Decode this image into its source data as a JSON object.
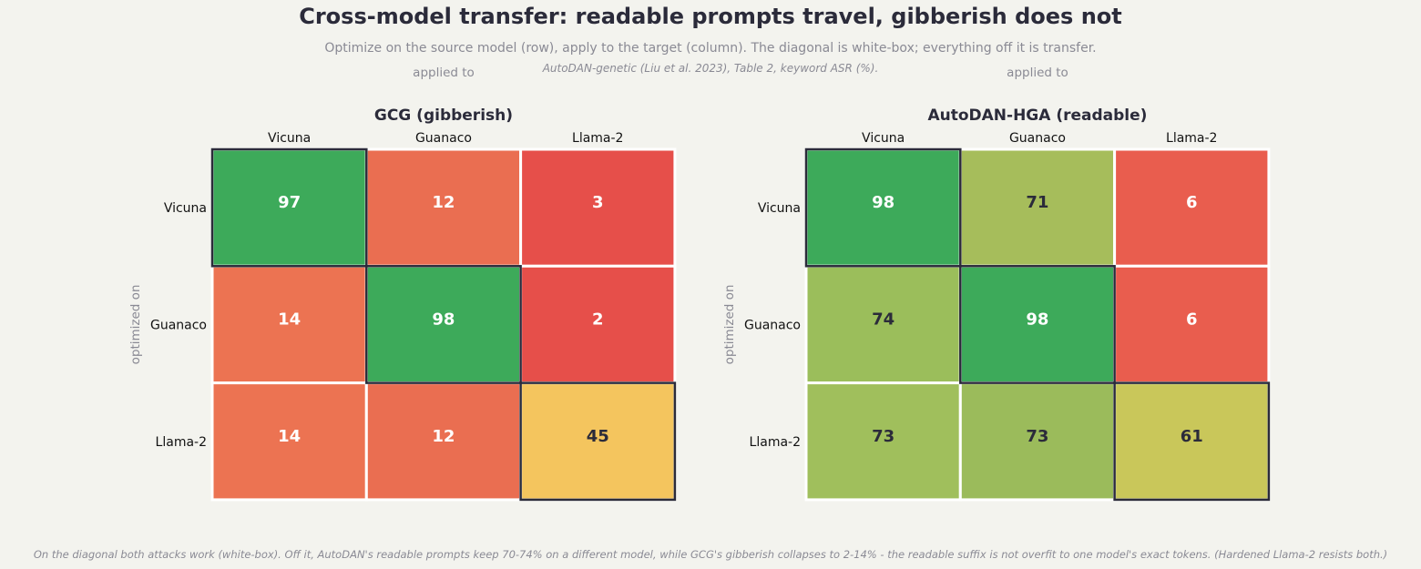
{
  "title": "Cross-model transfer: readable prompts travel, gibberish does not",
  "subtitle": "Optimize on the source model (row), apply to the target (column). The diagonal is white-box; everything off it is transfer.",
  "source_note": "AutoDAN-genetic (Liu et al. 2023), Table 2, keyword ASR (%).",
  "footer": "On the diagonal both attacks work (white-box). Off it, AutoDAN's readable prompts keep 70-74% on a different model, while GCG's gibberish collapses to 2-14% - the readable suffix is not overfit to one model's exact tokens. (Hardened Llama-2 resists both.)",
  "chart_data": [
    {
      "type": "heatmap",
      "title": "GCG (gibberish)",
      "xlabel": "applied to",
      "ylabel": "optimized on",
      "columns": [
        "Vicuna",
        "Guanaco",
        "Llama-2"
      ],
      "rows": [
        "Vicuna",
        "Guanaco",
        "Llama-2"
      ],
      "values": [
        [
          97,
          12,
          3
        ],
        [
          14,
          98,
          2
        ],
        [
          14,
          12,
          45
        ]
      ],
      "colors": [
        [
          "#3daa5a",
          "#ea6e51",
          "#e64f4a"
        ],
        [
          "#ec7352",
          "#3daa5a",
          "#e64f4a"
        ],
        [
          "#ec7352",
          "#ea6e51",
          "#f4c55e"
        ]
      ],
      "text_colors": [
        [
          "#ffffff",
          "#ffffff",
          "#ffffff"
        ],
        [
          "#ffffff",
          "#ffffff",
          "#ffffff"
        ],
        [
          "#ffffff",
          "#ffffff",
          "#2b2b3a"
        ]
      ],
      "diagonal_highlight": true
    },
    {
      "type": "heatmap",
      "title": "AutoDAN-HGA (readable)",
      "xlabel": "applied to",
      "ylabel": "optimized on",
      "columns": [
        "Vicuna",
        "Guanaco",
        "Llama-2"
      ],
      "rows": [
        "Vicuna",
        "Guanaco",
        "Llama-2"
      ],
      "values": [
        [
          98,
          71,
          6
        ],
        [
          74,
          98,
          6
        ],
        [
          73,
          73,
          61
        ]
      ],
      "colors": [
        [
          "#3daa5a",
          "#a6bd5b",
          "#e95d4e"
        ],
        [
          "#9bbe5b",
          "#3daa5a",
          "#e95d4e"
        ],
        [
          "#a0bf5c",
          "#9bbb5b",
          "#c9c75a"
        ]
      ],
      "text_colors": [
        [
          "#ffffff",
          "#2b2b3a",
          "#ffffff"
        ],
        [
          "#2b2b3a",
          "#ffffff",
          "#ffffff"
        ],
        [
          "#2b2b3a",
          "#2b2b3a",
          "#2b2b3a"
        ]
      ],
      "diagonal_highlight": true
    }
  ]
}
